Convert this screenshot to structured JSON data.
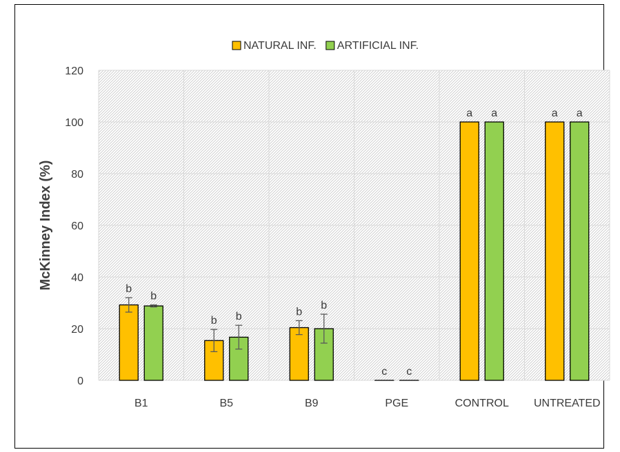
{
  "chart_data": {
    "type": "bar",
    "categories": [
      "B1",
      "B5",
      "B9",
      "PGE",
      "CONTROL",
      "UNTREATED"
    ],
    "ylabel": "McKinney Index (%)",
    "ylim": [
      0,
      120
    ],
    "yticks": [
      0,
      20,
      40,
      60,
      80,
      100,
      120
    ],
    "grid": true,
    "legend_position": "top-center",
    "series": [
      {
        "name": "NATURAL INF.",
        "color": "#FFC000",
        "values": [
          29.2,
          15.4,
          20.4,
          0,
          100,
          100
        ],
        "errors": [
          2.8,
          4.3,
          2.7,
          0,
          0,
          0
        ],
        "letters": [
          "b",
          "b",
          "b",
          "c",
          "a",
          "a"
        ]
      },
      {
        "name": "ARTIFICIAL INF.",
        "color": "#92D050",
        "values": [
          28.8,
          16.7,
          20.0,
          0,
          100,
          100
        ],
        "errors": [
          0.4,
          4.6,
          5.6,
          0,
          0,
          0
        ],
        "letters": [
          "b",
          "b",
          "b",
          "c",
          "a",
          "a"
        ]
      }
    ]
  }
}
